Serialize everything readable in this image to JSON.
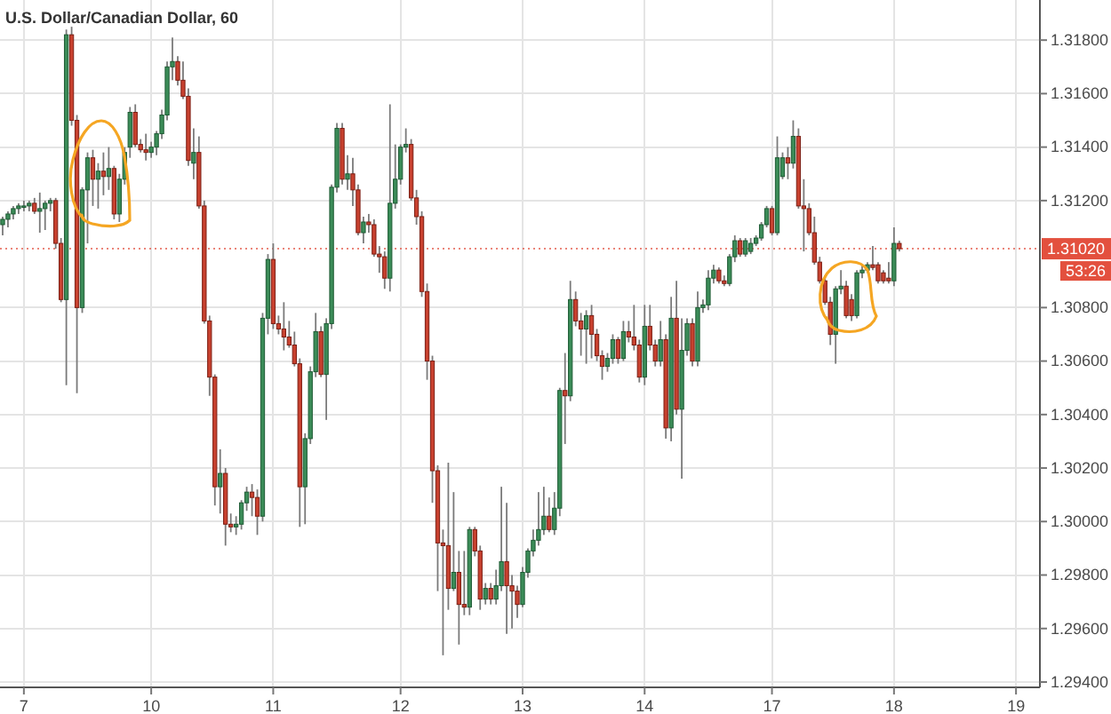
{
  "chart_data": {
    "type": "candlestick",
    "title": "U.S. Dollar/Canadian Dollar, 60",
    "categories": [
      null,
      null,
      null,
      null,
      "7",
      null,
      null,
      null,
      null,
      null,
      null,
      null,
      null,
      null,
      null,
      null,
      null,
      null,
      null,
      null,
      null,
      null,
      null,
      null,
      null,
      null,
      null,
      null,
      "10",
      null,
      null,
      null,
      null,
      null,
      null,
      null,
      null,
      null,
      null,
      null,
      null,
      null,
      null,
      null,
      null,
      null,
      null,
      null,
      null,
      null,
      null,
      "11",
      null,
      null,
      null,
      null,
      null,
      null,
      null,
      null,
      null,
      null,
      null,
      null,
      null,
      null,
      null,
      null,
      null,
      null,
      null,
      null,
      null,
      null,
      null,
      "12",
      null,
      null,
      null,
      null,
      null,
      null,
      null,
      null,
      null,
      null,
      null,
      null,
      null,
      null,
      null,
      null,
      null,
      null,
      null,
      null,
      null,
      null,
      "13",
      null,
      null,
      null,
      null,
      null,
      null,
      null,
      null,
      null,
      null,
      null,
      null,
      null,
      null,
      null,
      null,
      null,
      null,
      null,
      null,
      null,
      null,
      "14",
      null,
      null,
      null,
      null,
      null,
      null,
      null,
      null,
      null,
      null,
      null,
      null,
      null,
      null,
      null,
      null,
      null,
      null,
      null,
      null,
      null,
      null,
      null,
      "17",
      null,
      null,
      null,
      null,
      null,
      null,
      null,
      null,
      null,
      null,
      null,
      null,
      null,
      null,
      null,
      null,
      null,
      null,
      null,
      null,
      null,
      null,
      "18",
      null,
      null,
      null,
      null,
      null,
      null,
      null,
      null,
      null,
      null,
      null,
      null,
      null,
      null,
      null,
      null,
      null,
      null,
      null,
      null,
      null,
      null,
      "19",
      null,
      null,
      null,
      null
    ],
    "ohlc": [
      [
        1.3111,
        1.3114,
        1.3107,
        1.3113
      ],
      [
        1.3113,
        1.3116,
        1.311,
        1.3115
      ],
      [
        1.3115,
        1.3118,
        1.3113,
        1.3117
      ],
      [
        1.3117,
        1.3119,
        1.3115,
        1.3118
      ],
      [
        1.3118,
        1.312,
        1.3116,
        1.3118
      ],
      [
        1.3118,
        1.312,
        1.3116,
        1.3119
      ],
      [
        1.3119,
        1.3121,
        1.3115,
        1.3116
      ],
      [
        1.3116,
        1.3123,
        1.3108,
        1.3117
      ],
      [
        1.3117,
        1.312,
        1.3109,
        1.3119
      ],
      [
        1.3119,
        1.3121,
        1.3116,
        1.312
      ],
      [
        1.312,
        1.3121,
        1.3102,
        1.3104
      ],
      [
        1.3104,
        1.3106,
        1.3082,
        1.3083
      ],
      [
        1.3083,
        1.3184,
        1.3051,
        1.3182
      ],
      [
        1.3182,
        1.3185,
        1.3148,
        1.315
      ],
      [
        1.315,
        1.3152,
        1.3048,
        1.308
      ],
      [
        1.308,
        1.3125,
        1.3078,
        1.3124
      ],
      [
        1.3124,
        1.3138,
        1.3104,
        1.3136
      ],
      [
        1.3136,
        1.3139,
        1.3118,
        1.3128
      ],
      [
        1.3128,
        1.3134,
        1.3117,
        1.3131
      ],
      [
        1.3131,
        1.3138,
        1.3122,
        1.3129
      ],
      [
        1.3129,
        1.314,
        1.3124,
        1.3132
      ],
      [
        1.3132,
        1.3133,
        1.3113,
        1.3115
      ],
      [
        1.3115,
        1.313,
        1.3112,
        1.3128
      ],
      [
        1.3128,
        1.314,
        1.3126,
        1.3138
      ],
      [
        1.314,
        1.3155,
        1.3136,
        1.3153
      ],
      [
        1.3153,
        1.3156,
        1.314,
        1.3141
      ],
      [
        1.3141,
        1.3143,
        1.3138,
        1.3139
      ],
      [
        1.3139,
        1.3145,
        1.3135,
        1.3138
      ],
      [
        1.3138,
        1.3142,
        1.3136,
        1.314
      ],
      [
        1.314,
        1.3146,
        1.3137,
        1.3145
      ],
      [
        1.3145,
        1.3154,
        1.3143,
        1.3152
      ],
      [
        1.3152,
        1.3172,
        1.315,
        1.317
      ],
      [
        1.317,
        1.3181,
        1.3165,
        1.3172
      ],
      [
        1.3172,
        1.3174,
        1.3163,
        1.3165
      ],
      [
        1.3165,
        1.3172,
        1.3158,
        1.3159
      ],
      [
        1.3159,
        1.3162,
        1.3133,
        1.3135
      ],
      [
        1.3134,
        1.3147,
        1.3128,
        1.3138
      ],
      [
        1.3138,
        1.3144,
        1.3117,
        1.3118
      ],
      [
        1.3118,
        1.312,
        1.3074,
        1.3075
      ],
      [
        1.3075,
        1.3077,
        1.3047,
        1.3054
      ],
      [
        1.3054,
        1.3055,
        1.3006,
        1.3013
      ],
      [
        1.3013,
        1.3027,
        1.3003,
        1.3018
      ],
      [
        1.3018,
        1.302,
        1.2991,
        1.2999
      ],
      [
        1.2999,
        1.3003,
        1.2996,
        1.2998
      ],
      [
        1.2998,
        1.3002,
        1.2995,
        1.2999
      ],
      [
        1.2999,
        1.3008,
        1.2997,
        1.3007
      ],
      [
        1.3007,
        1.3013,
        1.3004,
        1.3011
      ],
      [
        1.3011,
        1.3014,
        1.3002,
        1.3009
      ],
      [
        1.3009,
        1.3012,
        1.2995,
        1.3002
      ],
      [
        1.3002,
        1.3078,
        1.3,
        1.3076
      ],
      [
        1.3076,
        1.31,
        1.307,
        1.3098
      ],
      [
        1.3098,
        1.3104,
        1.3072,
        1.3074
      ],
      [
        1.3074,
        1.3077,
        1.307,
        1.3072
      ],
      [
        1.3072,
        1.3082,
        1.3064,
        1.3069
      ],
      [
        1.3069,
        1.3075,
        1.3065,
        1.3066
      ],
      [
        1.3066,
        1.3071,
        1.3058,
        1.3059
      ],
      [
        1.3059,
        1.3061,
        1.2998,
        1.3013
      ],
      [
        1.3013,
        1.3033,
        1.2999,
        1.3031
      ],
      [
        1.3031,
        1.3058,
        1.3029,
        1.3056
      ],
      [
        1.3056,
        1.3078,
        1.3054,
        1.3071
      ],
      [
        1.3071,
        1.3073,
        1.3054,
        1.3055
      ],
      [
        1.3055,
        1.3076,
        1.3038,
        1.3074
      ],
      [
        1.3074,
        1.3126,
        1.3072,
        1.3125
      ],
      [
        1.3125,
        1.3149,
        1.3123,
        1.3147
      ],
      [
        1.3147,
        1.3149,
        1.3126,
        1.3128
      ],
      [
        1.3128,
        1.3137,
        1.3124,
        1.313
      ],
      [
        1.313,
        1.3136,
        1.3118,
        1.3124
      ],
      [
        1.3124,
        1.3126,
        1.3107,
        1.3108
      ],
      [
        1.3108,
        1.3114,
        1.3104,
        1.3112
      ],
      [
        1.3112,
        1.3115,
        1.3108,
        1.3111
      ],
      [
        1.3111,
        1.3113,
        1.3099,
        1.31
      ],
      [
        1.31,
        1.3103,
        1.3093,
        1.3099
      ],
      [
        1.3099,
        1.3101,
        1.3087,
        1.3091
      ],
      [
        1.3091,
        1.3156,
        1.3086,
        1.3119
      ],
      [
        1.3119,
        1.3141,
        1.3117,
        1.3128
      ],
      [
        1.3128,
        1.3141,
        1.3126,
        1.314
      ],
      [
        1.314,
        1.3147,
        1.3138,
        1.3141
      ],
      [
        1.3141,
        1.3143,
        1.312,
        1.3121
      ],
      [
        1.3121,
        1.3124,
        1.3111,
        1.3114
      ],
      [
        1.3114,
        1.3116,
        1.3084,
        1.3086
      ],
      [
        1.3086,
        1.3089,
        1.3053,
        1.306
      ],
      [
        1.306,
        1.3062,
        1.3007,
        1.3019
      ],
      [
        1.3019,
        1.3021,
        1.2974,
        1.2992
      ],
      [
        1.2992,
        1.2997,
        1.295,
        1.2991
      ],
      [
        1.2991,
        1.3022,
        1.2967,
        1.2975
      ],
      [
        1.2975,
        1.3011,
        1.2974,
        1.2981
      ],
      [
        1.2981,
        1.2989,
        1.2954,
        1.2969
      ],
      [
        1.2969,
        1.2989,
        1.2965,
        1.2968
      ],
      [
        1.2968,
        1.2998,
        1.2965,
        1.2997
      ],
      [
        1.2997,
        1.2998,
        1.2987,
        1.2989
      ],
      [
        1.2989,
        1.2991,
        1.2967,
        1.2971
      ],
      [
        1.2971,
        1.2977,
        1.2969,
        1.2975
      ],
      [
        1.2975,
        1.2977,
        1.2969,
        1.2971
      ],
      [
        1.2971,
        1.2982,
        1.2969,
        1.2976
      ],
      [
        1.2976,
        1.3013,
        1.2974,
        1.2985
      ],
      [
        1.2985,
        1.3007,
        1.2958,
        1.2976
      ],
      [
        1.2976,
        1.298,
        1.296,
        1.2974
      ],
      [
        1.2974,
        1.2976,
        1.2964,
        1.2969
      ],
      [
        1.2969,
        1.2983,
        1.2968,
        1.2981
      ],
      [
        1.2981,
        1.299,
        1.2979,
        1.2989
      ],
      [
        1.2989,
        1.2997,
        1.2987,
        1.2993
      ],
      [
        1.2993,
        1.3011,
        1.2991,
        1.2997
      ],
      [
        1.2997,
        1.3013,
        1.2995,
        1.3002
      ],
      [
        1.3002,
        1.3009,
        1.2996,
        1.2997
      ],
      [
        1.2997,
        1.3011,
        1.2995,
        1.3005
      ],
      [
        1.3005,
        1.305,
        1.3002,
        1.3049
      ],
      [
        1.3049,
        1.3063,
        1.3029,
        1.3047
      ],
      [
        1.3047,
        1.309,
        1.3045,
        1.3083
      ],
      [
        1.3083,
        1.3086,
        1.3073,
        1.3075
      ],
      [
        1.3075,
        1.3078,
        1.3062,
        1.3072
      ],
      [
        1.3072,
        1.3079,
        1.3059,
        1.3077
      ],
      [
        1.3077,
        1.3081,
        1.3061,
        1.307
      ],
      [
        1.307,
        1.3072,
        1.306,
        1.3062
      ],
      [
        1.3062,
        1.3064,
        1.3053,
        1.3058
      ],
      [
        1.3058,
        1.3063,
        1.3056,
        1.3061
      ],
      [
        1.3061,
        1.307,
        1.3059,
        1.3068
      ],
      [
        1.3068,
        1.3069,
        1.3059,
        1.3061
      ],
      [
        1.3061,
        1.3075,
        1.306,
        1.3071
      ],
      [
        1.3071,
        1.3075,
        1.3067,
        1.3069
      ],
      [
        1.3069,
        1.3081,
        1.3064,
        1.3066
      ],
      [
        1.3066,
        1.3068,
        1.3052,
        1.3054
      ],
      [
        1.3054,
        1.3081,
        1.3051,
        1.3073
      ],
      [
        1.3073,
        1.3081,
        1.3064,
        1.3066
      ],
      [
        1.3066,
        1.3068,
        1.3058,
        1.306
      ],
      [
        1.306,
        1.3075,
        1.3058,
        1.3068
      ],
      [
        1.3068,
        1.307,
        1.3031,
        1.3035
      ],
      [
        1.3035,
        1.3084,
        1.303,
        1.3076
      ],
      [
        1.3076,
        1.309,
        1.304,
        1.3042
      ],
      [
        1.3042,
        1.3076,
        1.3016,
        1.3064
      ],
      [
        1.3064,
        1.3076,
        1.3062,
        1.3074
      ],
      [
        1.3074,
        1.3076,
        1.3058,
        1.306
      ],
      [
        1.306,
        1.3086,
        1.3058,
        1.308
      ],
      [
        1.308,
        1.3083,
        1.3078,
        1.3081
      ],
      [
        1.3081,
        1.3094,
        1.3079,
        1.3091
      ],
      [
        1.3091,
        1.3096,
        1.3089,
        1.3094
      ],
      [
        1.3094,
        1.3095,
        1.3089,
        1.309
      ],
      [
        1.309,
        1.3092,
        1.3088,
        1.3089
      ],
      [
        1.3089,
        1.31,
        1.3088,
        1.3099
      ],
      [
        1.3099,
        1.3107,
        1.3097,
        1.3105
      ],
      [
        1.3105,
        1.3106,
        1.3099,
        1.31
      ],
      [
        1.31,
        1.3106,
        1.3099,
        1.3105
      ],
      [
        1.3101,
        1.3106,
        1.31,
        1.3104
      ],
      [
        1.3104,
        1.3107,
        1.3103,
        1.3106
      ],
      [
        1.3106,
        1.3112,
        1.3105,
        1.3111
      ],
      [
        1.3111,
        1.3118,
        1.311,
        1.3117
      ],
      [
        1.3117,
        1.3118,
        1.3107,
        1.3108
      ],
      [
        1.3108,
        1.3144,
        1.3107,
        1.3136
      ],
      [
        1.3129,
        1.3138,
        1.3128,
        1.3136
      ],
      [
        1.3136,
        1.314,
        1.3128,
        1.3134
      ],
      [
        1.3134,
        1.315,
        1.3132,
        1.3144
      ],
      [
        1.3144,
        1.3147,
        1.3117,
        1.3118
      ],
      [
        1.3118,
        1.3128,
        1.3101,
        1.3117
      ],
      [
        1.3117,
        1.3119,
        1.3107,
        1.3108
      ],
      [
        1.3108,
        1.3114,
        1.3096,
        1.3097
      ],
      [
        1.3097,
        1.3099,
        1.3089,
        1.309
      ],
      [
        1.309,
        1.3092,
        1.3081,
        1.3082
      ],
      [
        1.3082,
        1.3084,
        1.3066,
        1.307
      ],
      [
        1.307,
        1.3088,
        1.3059,
        1.3087
      ],
      [
        1.3087,
        1.3094,
        1.3085,
        1.3088
      ],
      [
        1.3088,
        1.309,
        1.3076,
        1.3077
      ],
      [
        1.3083,
        1.3085,
        1.3075,
        1.3077
      ],
      [
        1.3077,
        1.3094,
        1.3076,
        1.3093
      ],
      [
        1.3093,
        1.3096,
        1.3091,
        1.3094
      ],
      [
        1.3094,
        1.3097,
        1.3093,
        1.3096
      ],
      [
        1.3096,
        1.3103,
        1.3094,
        1.3095
      ],
      [
        1.3096,
        1.3097,
        1.3089,
        1.309
      ],
      [
        1.3093,
        1.3094,
        1.3089,
        1.309
      ],
      [
        1.3091,
        1.3097,
        1.3089,
        1.309
      ],
      [
        1.309,
        1.311,
        1.3088,
        1.3104
      ],
      [
        1.3104,
        1.3105,
        1.3101,
        1.3102
      ],
      null,
      null,
      null,
      null,
      null,
      null,
      null,
      null,
      null,
      null,
      null,
      null,
      null,
      null,
      null,
      null,
      null,
      null,
      null,
      null,
      null,
      null,
      null,
      null,
      null,
      null
    ],
    "ylim": [
      1.2938,
      1.3195
    ],
    "yticks": [
      {
        "value": 1.294,
        "label": "1.29400"
      },
      {
        "value": 1.296,
        "label": "1.29600"
      },
      {
        "value": 1.298,
        "label": "1.29800"
      },
      {
        "value": 1.3,
        "label": "1.30000"
      },
      {
        "value": 1.302,
        "label": "1.30200"
      },
      {
        "value": 1.304,
        "label": "1.30400"
      },
      {
        "value": 1.306,
        "label": "1.30600"
      },
      {
        "value": 1.308,
        "label": "1.30800"
      },
      {
        "value": 1.312,
        "label": "1.31200"
      },
      {
        "value": 1.314,
        "label": "1.31400"
      },
      {
        "value": 1.316,
        "label": "1.31600"
      },
      {
        "value": 1.318,
        "label": "1.31800"
      }
    ],
    "grid": true,
    "ref_lines": [
      {
        "axis": "y",
        "value": 1.3102,
        "label": "1.31020",
        "color": "#e3503e",
        "line_style": "dotted"
      }
    ],
    "annotations": [
      "53:26"
    ]
  }
}
